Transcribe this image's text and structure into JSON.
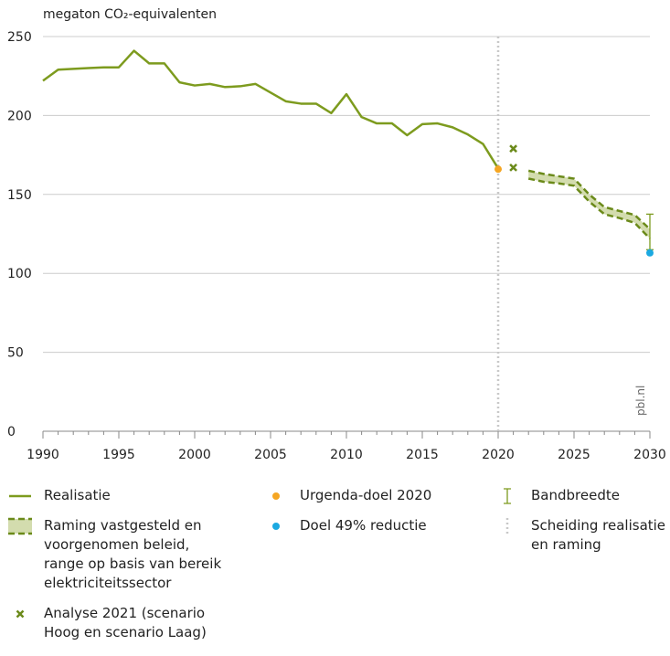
{
  "chart_data": {
    "type": "line",
    "y_label": "megaton CO₂-equivalenten",
    "source": "pbl.nl",
    "xlim": [
      1990,
      2030
    ],
    "xticks": [
      1990,
      1995,
      2000,
      2005,
      2010,
      2015,
      2020,
      2025,
      2030
    ],
    "xminor_step": 1,
    "ylim": [
      0,
      250
    ],
    "yticks": [
      0,
      50,
      100,
      150,
      200,
      250
    ],
    "grid": true,
    "series": [
      {
        "name": "Realisatie",
        "kind": "line",
        "color": "#7d9b1e",
        "x": [
          1990,
          1991,
          1992,
          1993,
          1994,
          1995,
          1996,
          1997,
          1998,
          1999,
          2000,
          2001,
          2002,
          2003,
          2004,
          2005,
          2006,
          2007,
          2008,
          2009,
          2010,
          2011,
          2012,
          2013,
          2014,
          2015,
          2016,
          2017,
          2018,
          2019,
          2020
        ],
        "values": [
          222,
          229,
          229.5,
          230,
          230.5,
          230.5,
          241,
          233,
          233,
          221,
          219,
          220,
          218,
          218.5,
          220,
          214.5,
          209,
          207.5,
          207.5,
          201.5,
          213.5,
          199,
          195,
          195,
          187.5,
          194.5,
          195,
          192.5,
          188,
          182,
          166.5
        ]
      },
      {
        "name": "Urgenda-doel 2020",
        "kind": "scatter",
        "marker": "circle",
        "color": "#f5a623",
        "x": [
          2020
        ],
        "values": [
          166
        ]
      },
      {
        "name": "Bandbreedte",
        "kind": "errorbar",
        "color": "#7d9b1e",
        "x": [
          2030
        ],
        "low": [
          115
        ],
        "high": [
          137.5
        ]
      },
      {
        "name": "Raming vastgesteld en voorgenomen beleid, range op basis van bereik elektriciteitssector",
        "kind": "band",
        "color": "#6b8a1a",
        "fill": "#d3dcae",
        "x": [
          2022,
          2023,
          2024,
          2025,
          2026,
          2027,
          2028,
          2029,
          2030
        ],
        "upper": [
          165,
          163,
          161.5,
          160,
          150,
          142,
          139.5,
          137,
          128
        ],
        "lower": [
          160,
          158,
          157,
          155.5,
          145.5,
          137.5,
          135,
          132,
          122
        ]
      },
      {
        "name": "Doel 49% reductie",
        "kind": "scatter",
        "marker": "circle",
        "color": "#1ba9e1",
        "x": [
          2030
        ],
        "values": [
          113
        ]
      },
      {
        "name": "Scheiding realisatie en raming",
        "kind": "vline",
        "color": "#c8c8c8",
        "x": 2020
      },
      {
        "name": "Analyse 2021 (scenario Hoog en scenario Laag)",
        "kind": "scatter",
        "marker": "x",
        "color": "#6b8a1a",
        "x": [
          2021,
          2021
        ],
        "values": [
          179,
          167
        ]
      }
    ]
  }
}
